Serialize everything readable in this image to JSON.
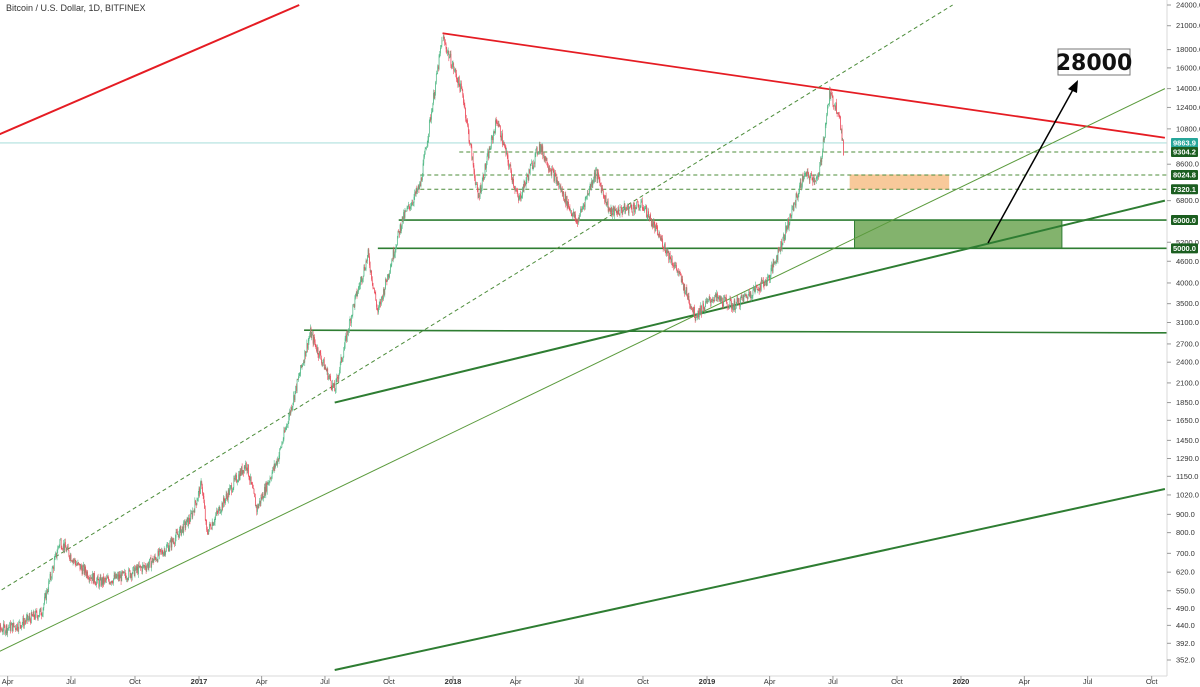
{
  "header": {
    "title": "Bitcoin / U.S. Dollar, 1D, BITFINEX"
  },
  "chart_data": {
    "type": "candlestick",
    "title": "Bitcoin / U.S. Dollar, 1D, BITFINEX",
    "y_scale": "log",
    "ylim": [
      330,
      24000
    ],
    "y_ticks": [
      "352.0",
      "392.0",
      "440.0",
      "490.0",
      "550.0",
      "620.0",
      "700.0",
      "800.0",
      "900.0",
      "1020.0",
      "1150.0",
      "1290.0",
      "1450.0",
      "1650.0",
      "1850.0",
      "2100.0",
      "2400.0",
      "2700.0",
      "3100.0",
      "3500.0",
      "4000.0",
      "4600.0",
      "5200.0",
      "6000.0",
      "6800.0",
      "7320.1",
      "8024.8",
      "8600.0",
      "9304.2",
      "9863.9",
      "10800.0",
      "12400.0",
      "14000.0",
      "16000.0",
      "18000.0",
      "21000.0",
      "24000.0"
    ],
    "x_ticks": [
      "Apr",
      "Jul",
      "Oct",
      "2017",
      "Apr",
      "Jul",
      "Oct",
      "2018",
      "Apr",
      "Jul",
      "Oct",
      "2019",
      "Apr",
      "Jul",
      "Oct",
      "2020",
      "Apr",
      "Jul",
      "Oct"
    ],
    "price_badges": [
      {
        "value": "9863.9",
        "color": "#26a69a"
      },
      {
        "value": "9304.2",
        "color": "#1b5e20"
      },
      {
        "value": "8024.8",
        "color": "#1b5e20"
      },
      {
        "value": "7320.1",
        "color": "#1b5e20"
      },
      {
        "value": "6000.0",
        "color": "#1b5e20"
      },
      {
        "value": "5000.0",
        "color": "#1b5e20"
      }
    ],
    "series": [
      {
        "values": [
          {
            "date": "2016-03-01",
            "price": 420
          },
          {
            "date": "2016-04-15",
            "price": 440
          },
          {
            "date": "2016-05-20",
            "price": 480
          },
          {
            "date": "2016-06-15",
            "price": 760
          },
          {
            "date": "2016-07-10",
            "price": 650
          },
          {
            "date": "2016-08-10",
            "price": 580
          },
          {
            "date": "2016-09-15",
            "price": 605
          },
          {
            "date": "2016-10-20",
            "price": 650
          },
          {
            "date": "2016-11-20",
            "price": 740
          },
          {
            "date": "2016-12-20",
            "price": 880
          },
          {
            "date": "2017-01-05",
            "price": 1100
          },
          {
            "date": "2017-01-12",
            "price": 800
          },
          {
            "date": "2017-02-20",
            "price": 1100
          },
          {
            "date": "2017-03-10",
            "price": 1250
          },
          {
            "date": "2017-03-25",
            "price": 930
          },
          {
            "date": "2017-04-25",
            "price": 1300
          },
          {
            "date": "2017-05-25",
            "price": 2200
          },
          {
            "date": "2017-06-10",
            "price": 2900
          },
          {
            "date": "2017-07-15",
            "price": 2000
          },
          {
            "date": "2017-08-10",
            "price": 3400
          },
          {
            "date": "2017-09-01",
            "price": 4800
          },
          {
            "date": "2017-09-15",
            "price": 3300
          },
          {
            "date": "2017-10-20",
            "price": 6000
          },
          {
            "date": "2017-11-15",
            "price": 7500
          },
          {
            "date": "2017-12-17",
            "price": 19500
          },
          {
            "date": "2018-01-15",
            "price": 13500
          },
          {
            "date": "2018-02-06",
            "price": 6900
          },
          {
            "date": "2018-03-05",
            "price": 11500
          },
          {
            "date": "2018-04-05",
            "price": 6800
          },
          {
            "date": "2018-05-05",
            "price": 9700
          },
          {
            "date": "2018-06-28",
            "price": 5900
          },
          {
            "date": "2018-07-25",
            "price": 8200
          },
          {
            "date": "2018-08-15",
            "price": 6300
          },
          {
            "date": "2018-10-01",
            "price": 6600
          },
          {
            "date": "2018-11-20",
            "price": 4300
          },
          {
            "date": "2018-12-15",
            "price": 3250
          },
          {
            "date": "2019-01-10",
            "price": 3650
          },
          {
            "date": "2019-02-08",
            "price": 3450
          },
          {
            "date": "2019-03-30",
            "price": 4100
          },
          {
            "date": "2019-04-20",
            "price": 5300
          },
          {
            "date": "2019-05-20",
            "price": 8000
          },
          {
            "date": "2019-06-10",
            "price": 7800
          },
          {
            "date": "2019-06-26",
            "price": 13500
          },
          {
            "date": "2019-07-10",
            "price": 12000
          },
          {
            "date": "2019-07-16",
            "price": 9300
          }
        ]
      }
    ],
    "horizontal_levels": [
      {
        "price": 9304.2,
        "style": "dashed"
      },
      {
        "price": 8024.8,
        "style": "dashed"
      },
      {
        "price": 7320.1,
        "style": "dashed"
      },
      {
        "price": 6000.0,
        "style": "solid"
      },
      {
        "price": 5000.0,
        "style": "solid"
      },
      {
        "price": 2950.0,
        "style": "solid"
      }
    ],
    "zones": [
      {
        "from_date": "2019-08-01",
        "to_date": "2020-05-25",
        "low": 5000,
        "high": 6000,
        "color": "#5a9a3c"
      },
      {
        "from_date": "2019-07-25",
        "to_date": "2019-12-15",
        "low": 7300,
        "high": 8050,
        "color": "#f6b778"
      }
    ],
    "annotation": {
      "text": "28000",
      "arrow_color": "#000000"
    }
  }
}
